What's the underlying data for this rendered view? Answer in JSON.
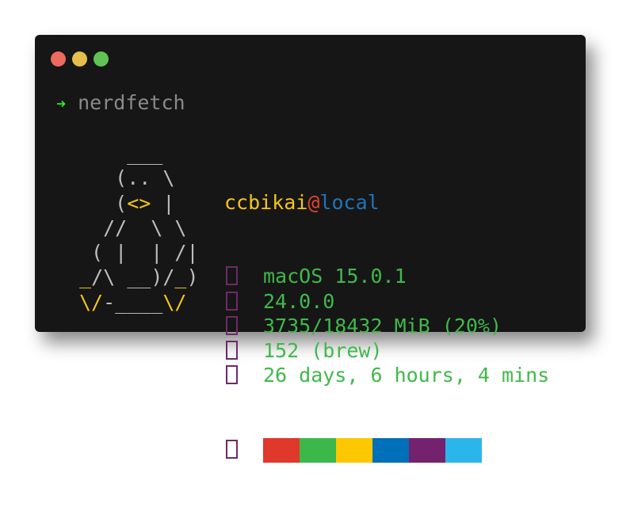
{
  "window": {
    "controls": [
      {
        "name": "close",
        "color": "#ed6a5e"
      },
      {
        "name": "minimize",
        "color": "#e5be4b"
      },
      {
        "name": "maximize",
        "color": "#61c354"
      }
    ]
  },
  "prompt": {
    "symbol": "➜",
    "command": "nerdfetch"
  },
  "logo": {
    "lines": [
      [
        {
          "t": "    ___",
          "c": "g"
        }
      ],
      [
        {
          "t": "   (.. \\",
          "c": "g"
        }
      ],
      [
        {
          "t": "   (",
          "c": "g"
        },
        {
          "t": "<>",
          "c": "y"
        },
        {
          "t": " |",
          "c": "g"
        }
      ],
      [
        {
          "t": "  //  \\ \\",
          "c": "g"
        }
      ],
      [
        {
          "t": " ( |  | /|",
          "c": "g"
        }
      ],
      [
        {
          "t": "_",
          "c": "y"
        },
        {
          "t": "/\\ __)/",
          "c": "g"
        },
        {
          "t": "_",
          "c": "y"
        },
        {
          "t": ")",
          "c": "g"
        }
      ],
      [
        {
          "t": "\\/",
          "c": "y"
        },
        {
          "t": "-____",
          "c": "g"
        },
        {
          "t": "\\/",
          "c": "y"
        }
      ]
    ]
  },
  "info": {
    "user": "ccbikai",
    "at": "@",
    "host": "local",
    "rows": [
      {
        "icon": "os-icon",
        "value": "macOS 15.0.1"
      },
      {
        "icon": "kernel-icon",
        "value": "24.0.0"
      },
      {
        "icon": "memory-icon",
        "value": "3735/18432 MiB (20%)"
      },
      {
        "icon": "packages-icon",
        "value": "152 (brew)"
      },
      {
        "icon": "uptime-icon",
        "value": "26 days, 6 hours, 4 mins"
      }
    ],
    "palette_icon": "palette-icon",
    "palette": [
      "#e0382b",
      "#3cb84a",
      "#fdc800",
      "#0070b8",
      "#74226e",
      "#2bb6eb"
    ]
  }
}
